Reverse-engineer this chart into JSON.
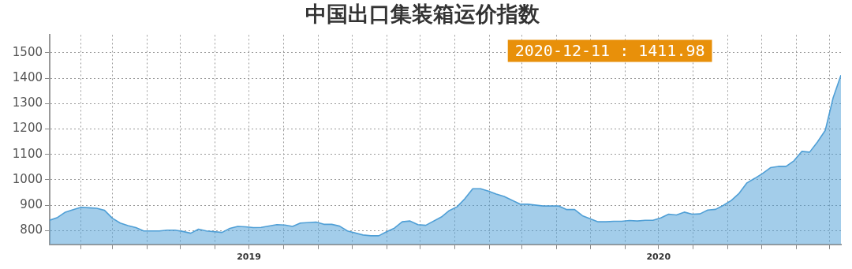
{
  "chart_data": {
    "type": "area",
    "title": "中国出口集装箱运价指数",
    "x": [
      "2019-01-04",
      "2019-01-11",
      "2019-01-18",
      "2019-01-25",
      "2019-02-01",
      "2019-02-08",
      "2019-02-15",
      "2019-02-22",
      "2019-03-01",
      "2019-03-08",
      "2019-03-15",
      "2019-03-22",
      "2019-03-29",
      "2019-04-12",
      "2019-04-19",
      "2019-04-26",
      "2019-05-03",
      "2019-05-10",
      "2019-05-17",
      "2019-05-24",
      "2019-06-07",
      "2019-06-14",
      "2019-06-21",
      "2019-06-28",
      "2019-07-05",
      "2019-07-12",
      "2019-07-26",
      "2019-08-02",
      "2019-08-09",
      "2019-08-16",
      "2019-08-30",
      "2019-09-06",
      "2019-09-13",
      "2019-09-20",
      "2019-09-27",
      "2019-10-11",
      "2019-10-18",
      "2019-10-25",
      "2019-11-01",
      "2019-11-08",
      "2019-11-15",
      "2019-11-22",
      "2019-11-29",
      "2019-12-06",
      "2019-12-20",
      "2019-12-27",
      "2020-01-03",
      "2020-01-10",
      "2020-01-17",
      "2020-01-24",
      "2020-01-31",
      "2020-02-07",
      "2020-02-14",
      "2020-02-28",
      "2020-03-06",
      "2020-03-20",
      "2020-04-03",
      "2020-04-10",
      "2020-04-17",
      "2020-04-24",
      "2020-05-08",
      "2020-05-15",
      "2020-05-22",
      "2020-05-29",
      "2020-06-05",
      "2020-06-12",
      "2020-06-19",
      "2020-06-26",
      "2020-07-03",
      "2020-07-10",
      "2020-07-17",
      "2020-07-24",
      "2020-07-31",
      "2020-08-07",
      "2020-08-14",
      "2020-08-21",
      "2020-08-28",
      "2020-09-04",
      "2020-09-11",
      "2020-09-18",
      "2020-09-25",
      "2020-10-02",
      "2020-10-09",
      "2020-10-16",
      "2020-10-23",
      "2020-10-30",
      "2020-11-06",
      "2020-11-13",
      "2020-11-20",
      "2020-11-27",
      "2020-12-04",
      "2020-12-11"
    ],
    "series": [
      {
        "color": "#4f9fd6",
        "values": [
          841,
          852,
          873,
          883,
          892,
          890,
          888,
          880,
          849,
          830,
          820,
          812,
          799,
          799,
          802,
          802,
          797,
          790,
          806,
          799,
          793,
          809,
          817,
          815,
          812,
          813,
          824,
          822,
          817,
          830,
          834,
          825,
          825,
          818,
          799,
          783,
          780,
          780,
          796,
          810,
          835,
          838,
          824,
          821,
          854,
          879,
          894,
          926,
          965,
          965,
          956,
          944,
          935,
          905,
          904,
          897,
          897,
          883,
          883,
          859,
          835,
          835,
          837,
          837,
          840,
          838,
          841,
          841,
          850,
          865,
          862,
          873,
          865,
          866,
          881,
          884,
          900,
          919,
          947,
          988,
          1006,
          1025,
          1048,
          1053,
          1053,
          1075,
          1112,
          1109,
          1149,
          1195,
          1323,
          1411.98
        ]
      }
    ],
    "xlim": [
      "2019-01-04",
      "2020-12-11"
    ],
    "xticks": [
      {
        "value": "2019-02-01",
        "label": null
      },
      {
        "value": "2019-03-01",
        "label": null
      },
      {
        "value": "2019-04-01",
        "label": null
      },
      {
        "value": "2019-05-01",
        "label": null
      },
      {
        "value": "2019-06-01",
        "label": null
      },
      {
        "value": "2019-07-01",
        "label": "2019"
      },
      {
        "value": "2019-08-01",
        "label": null
      },
      {
        "value": "2019-09-01",
        "label": null
      },
      {
        "value": "2019-10-01",
        "label": null
      },
      {
        "value": "2019-11-01",
        "label": null
      },
      {
        "value": "2019-12-01",
        "label": null
      },
      {
        "value": "2020-01-01",
        "label": null
      },
      {
        "value": "2020-02-01",
        "label": null
      },
      {
        "value": "2020-03-01",
        "label": null
      },
      {
        "value": "2020-04-01",
        "label": null
      },
      {
        "value": "2020-05-01",
        "label": null
      },
      {
        "value": "2020-06-01",
        "label": null
      },
      {
        "value": "2020-07-01",
        "label": "2020"
      },
      {
        "value": "2020-08-01",
        "label": null
      },
      {
        "value": "2020-09-01",
        "label": null
      },
      {
        "value": "2020-10-01",
        "label": null
      },
      {
        "value": "2020-11-01",
        "label": null
      },
      {
        "value": "2020-12-01",
        "label": null
      }
    ],
    "ylim": [
      746,
      1570
    ],
    "yticks": [
      800,
      900,
      1000,
      1100,
      1200,
      1300,
      1400,
      1500
    ],
    "grid": true,
    "annotations": [
      "2020-12-11 : 1411.98"
    ]
  }
}
